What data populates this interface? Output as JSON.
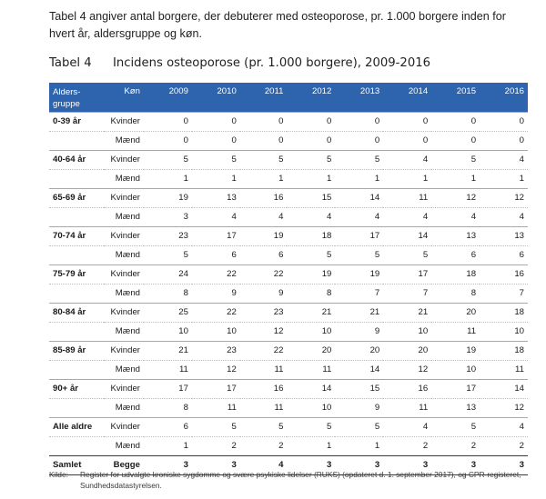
{
  "intro": "Tabel 4 angiver antal borgere, der debuterer med osteoporose, pr. 1.000 borgere inden for hvert år, aldersgruppe og køn.",
  "caption": {
    "number": "Tabel 4",
    "title": "Incidens osteoporose (pr. 1.000 borgere), 2009-2016"
  },
  "table": {
    "header_age_line1": "Alders-",
    "header_age_line2": "gruppe",
    "header_sex": "Køn",
    "years": [
      "2009",
      "2010",
      "2011",
      "2012",
      "2013",
      "2014",
      "2015",
      "2016"
    ],
    "groups": [
      {
        "age": "0-39 år",
        "female_label": "Kvinder",
        "male_label": "Mænd",
        "female": [
          "0",
          "0",
          "0",
          "0",
          "0",
          "0",
          "0",
          "0"
        ],
        "male": [
          "0",
          "0",
          "0",
          "0",
          "0",
          "0",
          "0",
          "0"
        ]
      },
      {
        "age": "40-64 år",
        "female_label": "Kvinder",
        "male_label": "Mænd",
        "female": [
          "5",
          "5",
          "5",
          "5",
          "5",
          "4",
          "5",
          "4"
        ],
        "male": [
          "1",
          "1",
          "1",
          "1",
          "1",
          "1",
          "1",
          "1"
        ]
      },
      {
        "age": "65-69 år",
        "female_label": "Kvinder",
        "male_label": "Mænd",
        "female": [
          "19",
          "13",
          "16",
          "15",
          "14",
          "11",
          "12",
          "12"
        ],
        "male": [
          "3",
          "4",
          "4",
          "4",
          "4",
          "4",
          "4",
          "4"
        ]
      },
      {
        "age": "70-74 år",
        "female_label": "Kvinder",
        "male_label": "Mænd",
        "female": [
          "23",
          "17",
          "19",
          "18",
          "17",
          "14",
          "13",
          "13"
        ],
        "male": [
          "5",
          "6",
          "6",
          "5",
          "5",
          "5",
          "6",
          "6"
        ]
      },
      {
        "age": "75-79 år",
        "female_label": "Kvinder",
        "male_label": "Mænd",
        "female": [
          "24",
          "22",
          "22",
          "19",
          "19",
          "17",
          "18",
          "16"
        ],
        "male": [
          "8",
          "9",
          "9",
          "8",
          "7",
          "7",
          "8",
          "7"
        ]
      },
      {
        "age": "80-84 år",
        "female_label": "Kvinder",
        "male_label": "Mænd",
        "female": [
          "25",
          "22",
          "23",
          "21",
          "21",
          "21",
          "20",
          "18"
        ],
        "male": [
          "10",
          "10",
          "12",
          "10",
          "9",
          "10",
          "11",
          "10"
        ]
      },
      {
        "age": "85-89 år",
        "female_label": "Kvinder",
        "male_label": "Mænd",
        "female": [
          "21",
          "23",
          "22",
          "20",
          "20",
          "20",
          "19",
          "18"
        ],
        "male": [
          "11",
          "12",
          "11",
          "11",
          "14",
          "12",
          "10",
          "11"
        ]
      },
      {
        "age": "90+ år",
        "female_label": "Kvinder",
        "male_label": "Mænd",
        "female": [
          "17",
          "17",
          "16",
          "14",
          "15",
          "16",
          "17",
          "14"
        ],
        "male": [
          "8",
          "11",
          "11",
          "10",
          "9",
          "11",
          "13",
          "12"
        ]
      },
      {
        "age": "Alle aldre",
        "female_label": "Kvinder",
        "male_label": "Mænd",
        "female": [
          "6",
          "5",
          "5",
          "5",
          "5",
          "4",
          "5",
          "4"
        ],
        "male": [
          "1",
          "2",
          "2",
          "1",
          "1",
          "2",
          "2",
          "2"
        ]
      }
    ],
    "total": {
      "label": "Samlet",
      "sex": "Begge",
      "values": [
        "3",
        "3",
        "4",
        "3",
        "3",
        "3",
        "3",
        "3"
      ]
    }
  },
  "source": {
    "label": "Kilde:",
    "text": "Register for udvalgte kroniske sygdomme og svære psykiske lidelser (RUKS) (opdateret d. 1. september 2017), og CPR-registeret, Sundhedsdatastyrelsen."
  }
}
